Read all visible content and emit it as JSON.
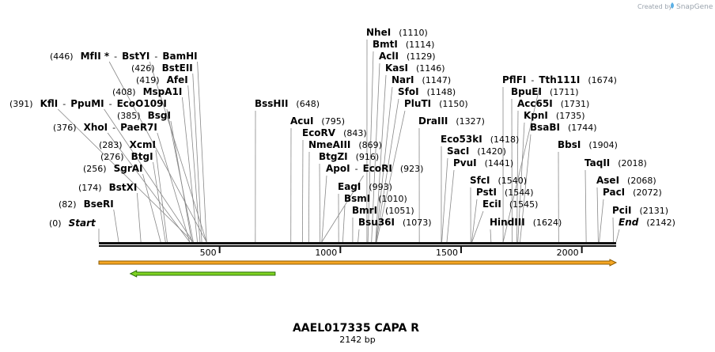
{
  "header": {
    "credit_prefix": "Created by",
    "brand": "SnapGene"
  },
  "sequence": {
    "name": "AAEL017335 CAPA R",
    "length_label": "2142 bp",
    "length_bp": 2142
  },
  "axis": {
    "ticks": [
      {
        "bp": 500,
        "label": "500"
      },
      {
        "bp": 1000,
        "label": "1000"
      },
      {
        "bp": 1500,
        "label": "1500"
      },
      {
        "bp": 2000,
        "label": "2000"
      }
    ]
  },
  "features": [
    {
      "name": "orange-feature",
      "start": 0,
      "end": 2142,
      "direction": "forward",
      "color": "#f5a623",
      "edge_color": "#8a5a00"
    },
    {
      "name": "green-feature",
      "start": 130,
      "end": 730,
      "direction": "reverse",
      "color": "#7ed321",
      "edge_color": "#2b6e0a"
    }
  ],
  "colors": {
    "backbone": "#111111",
    "leader": "#888888",
    "text": "#000000",
    "muted": "#9aa3ad",
    "brand_icon": "#5ab0e6"
  },
  "sites": [
    {
      "id": "s0",
      "group": [
        {
          "name": "Start",
          "italic": true
        }
      ],
      "pos_label": "(0)",
      "cuts": [
        0
      ],
      "pre": true
    },
    {
      "id": "s1",
      "group": [
        {
          "name": "BseRI"
        }
      ],
      "pos_label": "(82)",
      "cuts": [
        82
      ],
      "pre": true
    },
    {
      "id": "s2",
      "group": [
        {
          "name": "BstXI"
        }
      ],
      "pos_label": "(174)",
      "cuts": [
        174
      ],
      "pre": true
    },
    {
      "id": "s3",
      "group": [
        {
          "name": "SgrAI"
        }
      ],
      "pos_label": "(256)",
      "cuts": [
        256
      ],
      "pre": true
    },
    {
      "id": "s4",
      "group": [
        {
          "name": "BtgI"
        }
      ],
      "pos_label": "(276)",
      "cuts": [
        276
      ],
      "pre": true
    },
    {
      "id": "s5",
      "group": [
        {
          "name": "XcmI"
        }
      ],
      "pos_label": "(283)",
      "cuts": [
        283
      ],
      "pre": true
    },
    {
      "id": "s6",
      "group": [
        {
          "name": "XhoI"
        },
        {
          "name": "PaeR7I"
        }
      ],
      "pos_label": "(376)",
      "cuts": [
        376,
        376
      ],
      "pre": true
    },
    {
      "id": "s7",
      "group": [
        {
          "name": "BsgI"
        }
      ],
      "pos_label": "(385)",
      "cuts": [
        385
      ],
      "pre": true
    },
    {
      "id": "s8",
      "group": [
        {
          "name": "KflI"
        },
        {
          "name": "PpuMI"
        },
        {
          "name": "EcoO109I"
        }
      ],
      "pos_label": "(391)",
      "cuts": [
        391,
        391,
        391
      ],
      "pre": true
    },
    {
      "id": "s9",
      "group": [
        {
          "name": "MspA1I"
        }
      ],
      "pos_label": "(408)",
      "cuts": [
        408
      ],
      "pre": true
    },
    {
      "id": "s10",
      "group": [
        {
          "name": "AfeI"
        }
      ],
      "pos_label": "(419)",
      "cuts": [
        419
      ],
      "pre": true
    },
    {
      "id": "s11",
      "group": [
        {
          "name": "BstEII"
        }
      ],
      "pos_label": "(426)",
      "cuts": [
        426
      ],
      "pre": true
    },
    {
      "id": "s12",
      "group": [
        {
          "name": "MfII *"
        },
        {
          "name": "BstYI"
        },
        {
          "name": "BamHI"
        }
      ],
      "pos_label": "(446)",
      "cuts": [
        446,
        446,
        446
      ],
      "pre": true
    },
    {
      "id": "s13",
      "group": [
        {
          "name": "BssHII"
        }
      ],
      "pos_label": "(648)",
      "cuts": [
        648
      ]
    },
    {
      "id": "s14",
      "group": [
        {
          "name": "AcuI"
        }
      ],
      "pos_label": "(795)",
      "cuts": [
        795
      ]
    },
    {
      "id": "s15",
      "group": [
        {
          "name": "EcoRV"
        }
      ],
      "pos_label": "(843)",
      "cuts": [
        843
      ]
    },
    {
      "id": "s16",
      "group": [
        {
          "name": "NmeAIII"
        }
      ],
      "pos_label": "(869)",
      "cuts": [
        869
      ]
    },
    {
      "id": "s17",
      "group": [
        {
          "name": "BtgZI"
        }
      ],
      "pos_label": "(916)",
      "cuts": [
        916
      ]
    },
    {
      "id": "s18",
      "group": [
        {
          "name": "ApoI"
        },
        {
          "name": "EcoRI"
        }
      ],
      "pos_label": "(923)",
      "cuts": [
        923,
        923
      ]
    },
    {
      "id": "s19",
      "group": [
        {
          "name": "EagI"
        }
      ],
      "pos_label": "(993)",
      "cuts": [
        993
      ]
    },
    {
      "id": "s20",
      "group": [
        {
          "name": "BsmI"
        }
      ],
      "pos_label": "(1010)",
      "cuts": [
        1010
      ]
    },
    {
      "id": "s21",
      "group": [
        {
          "name": "BmrI"
        }
      ],
      "pos_label": "(1051)",
      "cuts": [
        1051
      ]
    },
    {
      "id": "s22",
      "group": [
        {
          "name": "Bsu36I"
        }
      ],
      "pos_label": "(1073)",
      "cuts": [
        1073
      ]
    },
    {
      "id": "s23",
      "group": [
        {
          "name": "NheI"
        }
      ],
      "pos_label": "(1110)",
      "cuts": [
        1110
      ]
    },
    {
      "id": "s24",
      "group": [
        {
          "name": "BmtI"
        }
      ],
      "pos_label": "(1114)",
      "cuts": [
        1114
      ]
    },
    {
      "id": "s25",
      "group": [
        {
          "name": "AclI"
        }
      ],
      "pos_label": "(1129)",
      "cuts": [
        1129
      ]
    },
    {
      "id": "s26",
      "group": [
        {
          "name": "KasI"
        }
      ],
      "pos_label": "(1146)",
      "cuts": [
        1146
      ]
    },
    {
      "id": "s27",
      "group": [
        {
          "name": "NarI"
        }
      ],
      "pos_label": "(1147)",
      "cuts": [
        1147
      ]
    },
    {
      "id": "s28",
      "group": [
        {
          "name": "SfoI"
        }
      ],
      "pos_label": "(1148)",
      "cuts": [
        1148
      ]
    },
    {
      "id": "s29",
      "group": [
        {
          "name": "PluTI"
        }
      ],
      "pos_label": "(1150)",
      "cuts": [
        1150
      ]
    },
    {
      "id": "s30",
      "group": [
        {
          "name": "DraIII"
        }
      ],
      "pos_label": "(1327)",
      "cuts": [
        1327
      ]
    },
    {
      "id": "s31",
      "group": [
        {
          "name": "Eco53kI"
        }
      ],
      "pos_label": "(1418)",
      "cuts": [
        1418
      ]
    },
    {
      "id": "s32",
      "group": [
        {
          "name": "SacI"
        }
      ],
      "pos_label": "(1420)",
      "cuts": [
        1420
      ]
    },
    {
      "id": "s33",
      "group": [
        {
          "name": "PvuI"
        }
      ],
      "pos_label": "(1441)",
      "cuts": [
        1441
      ]
    },
    {
      "id": "s34",
      "group": [
        {
          "name": "SfcI"
        }
      ],
      "pos_label": "(1540)",
      "cuts": [
        1540
      ]
    },
    {
      "id": "s35",
      "group": [
        {
          "name": "PstI"
        }
      ],
      "pos_label": "(1544)",
      "cuts": [
        1544
      ]
    },
    {
      "id": "s36",
      "group": [
        {
          "name": "EciI"
        }
      ],
      "pos_label": "(1545)",
      "cuts": [
        1545
      ]
    },
    {
      "id": "s37",
      "group": [
        {
          "name": "HindIII"
        }
      ],
      "pos_label": "(1624)",
      "cuts": [
        1624
      ]
    },
    {
      "id": "s38",
      "group": [
        {
          "name": "PflFI"
        },
        {
          "name": "Tth111I"
        }
      ],
      "pos_label": "(1674)",
      "cuts": [
        1674,
        1674
      ]
    },
    {
      "id": "s39",
      "group": [
        {
          "name": "BpuEI"
        }
      ],
      "pos_label": "(1711)",
      "cuts": [
        1711
      ]
    },
    {
      "id": "s40",
      "group": [
        {
          "name": "Acc65I"
        }
      ],
      "pos_label": "(1731)",
      "cuts": [
        1731
      ]
    },
    {
      "id": "s41",
      "group": [
        {
          "name": "KpnI"
        }
      ],
      "pos_label": "(1735)",
      "cuts": [
        1735
      ]
    },
    {
      "id": "s42",
      "group": [
        {
          "name": "BsaBI"
        }
      ],
      "pos_label": "(1744)",
      "cuts": [
        1744
      ]
    },
    {
      "id": "s43",
      "group": [
        {
          "name": "BbsI"
        }
      ],
      "pos_label": "(1904)",
      "cuts": [
        1904
      ]
    },
    {
      "id": "s44",
      "group": [
        {
          "name": "TaqII"
        }
      ],
      "pos_label": "(2018)",
      "cuts": [
        2018
      ]
    },
    {
      "id": "s45",
      "group": [
        {
          "name": "AseI"
        }
      ],
      "pos_label": "(2068)",
      "cuts": [
        2068
      ]
    },
    {
      "id": "s46",
      "group": [
        {
          "name": "PacI"
        }
      ],
      "pos_label": "(2072)",
      "cuts": [
        2072
      ]
    },
    {
      "id": "s47",
      "group": [
        {
          "name": "PciI"
        }
      ],
      "pos_label": "(2131)",
      "cuts": [
        2131
      ]
    },
    {
      "id": "s48",
      "group": [
        {
          "name": "End",
          "italic": true
        }
      ],
      "pos_label": "(2142)",
      "cuts": [
        2142
      ]
    }
  ]
}
